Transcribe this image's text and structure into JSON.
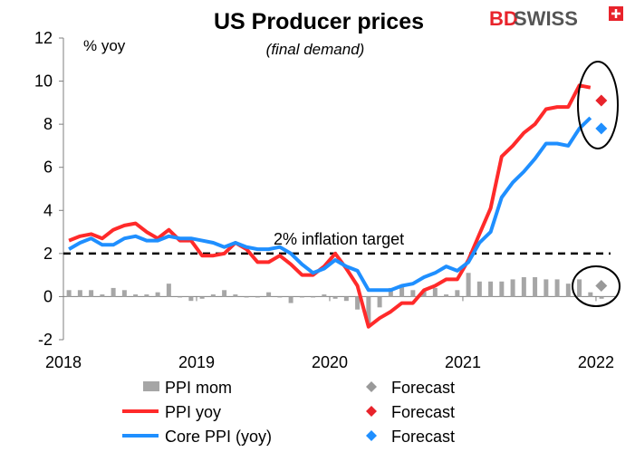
{
  "chart_data": {
    "type": "line",
    "title": "US Producer prices",
    "subtitle": "(final demand)",
    "ylabel": "% yoy",
    "ylim": [
      -2,
      12
    ],
    "yticks": [
      -2,
      0,
      2,
      4,
      6,
      8,
      10,
      12
    ],
    "xlim": [
      2018,
      2022.15
    ],
    "xticks": [
      "2018",
      "2019",
      "2020",
      "2021",
      "2022"
    ],
    "reference_line": {
      "y": 2,
      "label": "2% inflation target"
    },
    "brand": {
      "text_bd": "BD",
      "text_swiss": "SWISS",
      "bd_color": "#e8232b",
      "swiss_color": "#555555"
    },
    "colors": {
      "mom": "#a6a6a6",
      "yoy": "#ff2a2a",
      "core": "#1f8fff",
      "forecast_mom": "#999999",
      "forecast_yoy": "#e8232b",
      "forecast_core": "#1f8fff"
    },
    "series": [
      {
        "name": "PPI mom",
        "kind": "bar",
        "start": "2018-01",
        "values": [
          0.3,
          0.3,
          0.3,
          0.1,
          0.4,
          0.3,
          0.1,
          0.1,
          0.2,
          0.6,
          0.0,
          -0.2,
          -0.1,
          0.1,
          0.3,
          0.1,
          0.0,
          0.0,
          0.2,
          0.0,
          -0.3,
          0.0,
          0.0,
          0.1,
          -0.1,
          -0.2,
          -0.6,
          -1.3,
          -0.5,
          0.4,
          0.5,
          0.3,
          0.3,
          0.4,
          0.1,
          0.3,
          1.1,
          0.7,
          0.7,
          0.7,
          0.8,
          0.9,
          0.9,
          0.8,
          0.8,
          0.6,
          0.8,
          0.2,
          -0.1
        ]
      },
      {
        "name": "PPI yoy",
        "kind": "line",
        "start": "2018-01",
        "values": [
          2.6,
          2.8,
          2.9,
          2.7,
          3.1,
          3.3,
          3.4,
          3.0,
          2.7,
          3.1,
          2.6,
          2.6,
          1.9,
          1.9,
          2.0,
          2.5,
          2.2,
          1.6,
          1.6,
          1.9,
          1.5,
          1.0,
          1.0,
          1.4,
          2.0,
          1.3,
          0.5,
          -1.4,
          -1.0,
          -0.7,
          -0.3,
          -0.3,
          0.3,
          0.5,
          0.8,
          0.8,
          1.7,
          2.9,
          4.1,
          6.5,
          7.0,
          7.6,
          8.0,
          8.7,
          8.8,
          8.8,
          9.8,
          9.7
        ]
      },
      {
        "name": "Core PPI (yoy)",
        "kind": "line",
        "start": "2018-01",
        "values": [
          2.2,
          2.5,
          2.7,
          2.4,
          2.4,
          2.7,
          2.8,
          2.6,
          2.6,
          2.8,
          2.7,
          2.7,
          2.6,
          2.5,
          2.3,
          2.5,
          2.3,
          2.2,
          2.2,
          2.3,
          2.0,
          1.5,
          1.1,
          1.3,
          1.7,
          1.4,
          1.2,
          0.3,
          0.3,
          0.3,
          0.5,
          0.6,
          0.9,
          1.1,
          1.4,
          1.2,
          1.6,
          2.5,
          3.0,
          4.6,
          5.3,
          5.8,
          6.4,
          7.1,
          7.1,
          7.0,
          7.8,
          8.3
        ]
      }
    ],
    "forecasts": [
      {
        "name": "Forecast",
        "series": "PPI mom",
        "x": "2021-12",
        "value": 0.5
      },
      {
        "name": "Forecast",
        "series": "PPI yoy",
        "x": "2021-12",
        "value": 9.1
      },
      {
        "name": "Forecast",
        "series": "Core PPI (yoy)",
        "x": "2021-12",
        "value": 7.8
      }
    ],
    "legend": [
      {
        "label": "PPI mom",
        "forecast_label": "Forecast"
      },
      {
        "label": "PPI yoy",
        "forecast_label": "Forecast"
      },
      {
        "label": "Core PPI (yoy)",
        "forecast_label": "Forecast"
      }
    ]
  }
}
